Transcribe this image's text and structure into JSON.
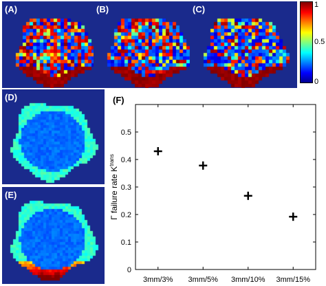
{
  "panels": {
    "a": {
      "label": "(A)"
    },
    "b": {
      "label": "(B)"
    },
    "c": {
      "label": "(C)"
    },
    "d": {
      "label": "(D)"
    },
    "e": {
      "label": "(E)"
    },
    "f": {
      "label": "(F)"
    }
  },
  "colorbar": {
    "ticks": [
      "1",
      "0.5",
      "0"
    ],
    "colormap": "jet",
    "min": 0,
    "max": 1
  },
  "colors": {
    "map_background": "#1a2a8c",
    "marker": "#000000"
  },
  "chart_data": {
    "type": "scatter",
    "marker": "plus",
    "categories": [
      "3mm/3%",
      "3mm/5%",
      "3mm/10%",
      "3mm/15%"
    ],
    "values": [
      0.43,
      0.378,
      0.268,
      0.192
    ],
    "ylabel_main": "Γ failure rate K",
    "ylabel_sup": "trans",
    "ylim": [
      0,
      0.6
    ],
    "yticks": [
      "0",
      "0.1",
      "0.2",
      "0.3",
      "0.4",
      "0.5"
    ],
    "ytick_values": [
      0,
      0.1,
      0.2,
      0.3,
      0.4,
      0.5
    ],
    "grid": false
  }
}
